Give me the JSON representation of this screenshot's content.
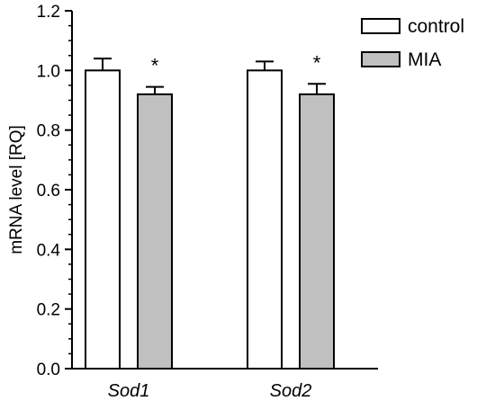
{
  "chart_data": {
    "type": "bar",
    "title": "",
    "xlabel": "",
    "ylabel": "mRNA level [RQ]",
    "ylim": [
      0,
      1.2
    ],
    "yticks": [
      "0.0",
      "0.2",
      "0.4",
      "0.6",
      "0.8",
      "1.0",
      "1.2"
    ],
    "ytick_values": [
      0,
      0.2,
      0.4,
      0.6,
      0.8,
      1.0,
      1.2
    ],
    "minor_yticks": true,
    "grid": false,
    "legend_position": "top-right",
    "categories": [
      "Sod1",
      "Sod2"
    ],
    "series": [
      {
        "name": "control",
        "values": [
          1.0,
          1.0
        ],
        "errors": [
          0.04,
          0.03
        ],
        "color": "#ffffff",
        "annotations": [
          "",
          ""
        ]
      },
      {
        "name": "MIA",
        "values": [
          0.92,
          0.92
        ],
        "errors": [
          0.025,
          0.035
        ],
        "color": "#c0c0c0",
        "annotations": [
          "*",
          "*"
        ]
      }
    ]
  }
}
